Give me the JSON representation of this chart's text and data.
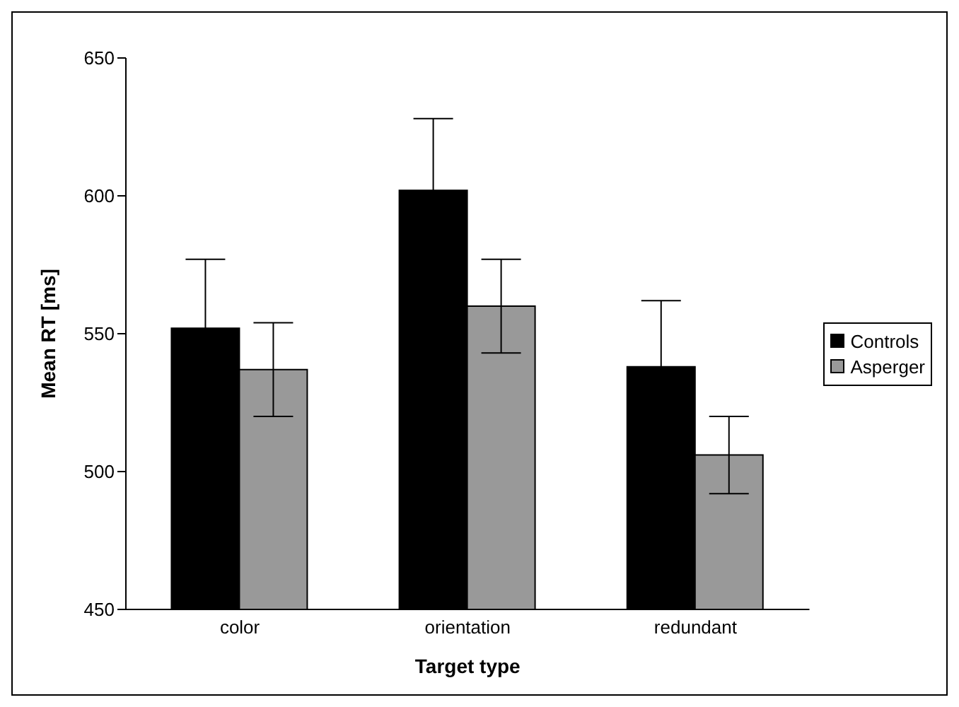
{
  "chart_data": {
    "type": "bar",
    "xlabel": "Target type",
    "ylabel": "Mean RT [ms]",
    "categories": [
      "color",
      "orientation",
      "redundant"
    ],
    "series": [
      {
        "name": "Controls",
        "color": "#000000",
        "values": [
          552,
          602,
          538
        ],
        "errors": [
          25,
          26,
          24
        ]
      },
      {
        "name": "Asperger",
        "color": "#999999",
        "values": [
          537,
          560,
          506
        ],
        "errors": [
          17,
          17,
          14
        ]
      }
    ],
    "ylim": [
      450,
      650
    ],
    "yticks": [
      450,
      500,
      550,
      600,
      650
    ],
    "grid": false,
    "legend": "right"
  }
}
